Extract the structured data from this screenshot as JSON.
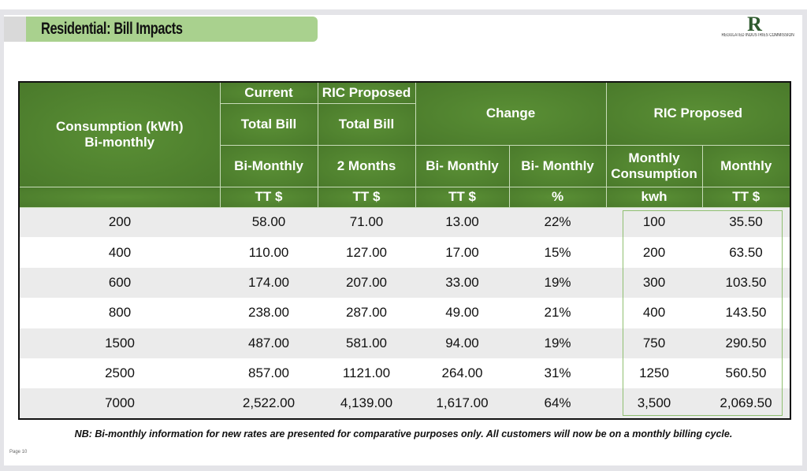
{
  "slide": {
    "title": "Residential: Bill Impacts",
    "logo_text": "REGULATED INDUSTRIES COMMISSION",
    "logo_letter": "R",
    "note": "NB:  Bi-monthly information for new rates are presented for comparative purposes only. All customers will now be on a monthly billing cycle.",
    "page": "Page 10"
  },
  "table": {
    "h": {
      "consumption": "Consumption (kWh)",
      "bimonthly": "Bi-monthly",
      "current": "Current",
      "ric_proposed": "RIC Proposed",
      "total_bill_1": "Total Bill",
      "total_bill_2": "Total Bill",
      "change": "Change",
      "ric_proposed_2": "RIC  Proposed",
      "bi_monthly_1": "Bi-Monthly",
      "two_months": "2 Months",
      "bi_monthly_2": "Bi- Monthly",
      "bi_monthly_3": "Bi- Monthly",
      "monthly_consumption": "Monthly Consumption",
      "monthly": "Monthly",
      "u1": "TT $",
      "u2": "TT $",
      "u3": "TT $",
      "u4": "%",
      "u5": "kwh",
      "u6": "TT $"
    },
    "rows": [
      [
        "200",
        "58.00",
        "71.00",
        "13.00",
        "22%",
        "100",
        "35.50"
      ],
      [
        "400",
        "110.00",
        "127.00",
        "17.00",
        "15%",
        "200",
        "63.50"
      ],
      [
        "600",
        "174.00",
        "207.00",
        "33.00",
        "19%",
        "300",
        "103.50"
      ],
      [
        "800",
        "238.00",
        "287.00",
        "49.00",
        "21%",
        "400",
        "143.50"
      ],
      [
        "1500",
        "487.00",
        "581.00",
        "94.00",
        "19%",
        "750",
        "290.50"
      ],
      [
        "2500",
        "857.00",
        "1121.00",
        "264.00",
        "31%",
        "1250",
        "560.50"
      ],
      [
        "7000",
        "2,522.00",
        "4,139.00",
        "1,617.00",
        "64%",
        "3,500",
        "2,069.50"
      ]
    ]
  },
  "colors": {
    "header_green": "#4e7f2e",
    "title_green": "#a9d18e"
  }
}
